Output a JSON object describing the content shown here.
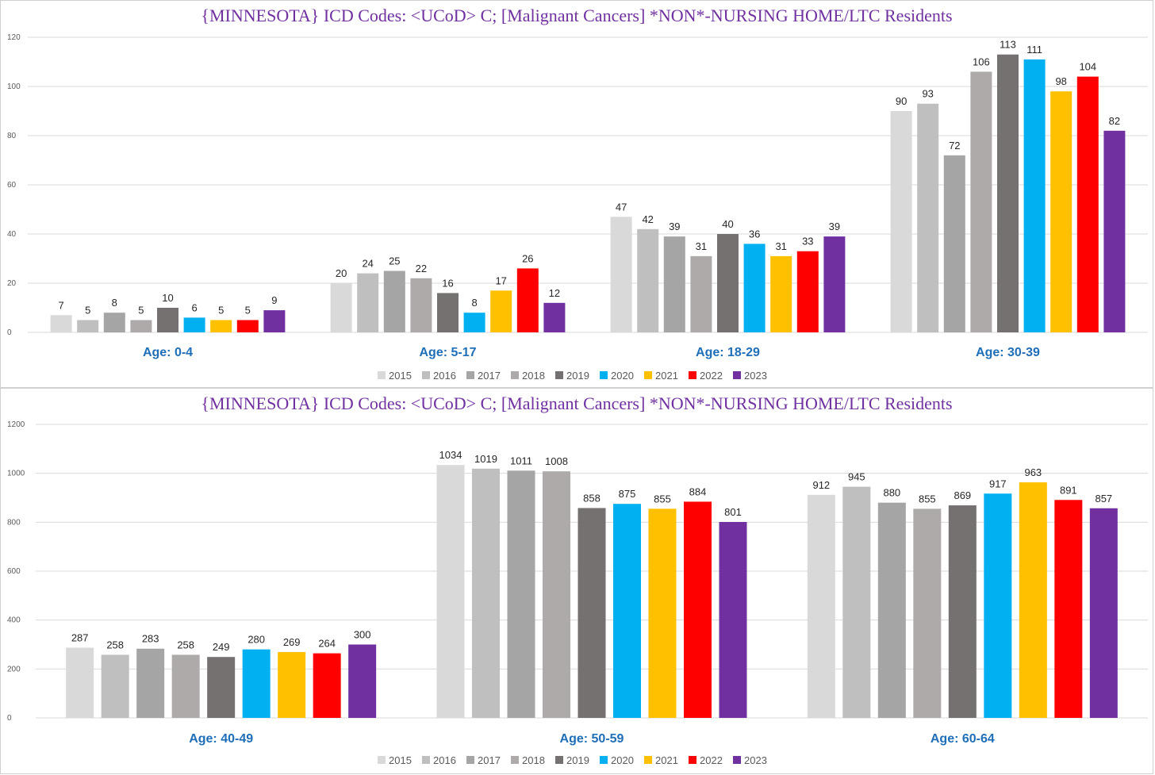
{
  "chart_data": [
    {
      "type": "bar",
      "title": "{MINNESOTA}  ICD Codes: <UCoD> C;  [Malignant Cancers] *NON*-NURSING HOME/LTC Residents",
      "categories": [
        "Age: 0-4",
        "Age: 5-17",
        "Age: 18-29",
        "Age: 30-39"
      ],
      "ylim": [
        0,
        120
      ],
      "yticks": [
        0,
        20,
        40,
        60,
        80,
        100,
        120
      ],
      "series": [
        {
          "name": "2015",
          "color": "#d9d9d9",
          "values": [
            7,
            20,
            47,
            90
          ]
        },
        {
          "name": "2016",
          "color": "#bfbfbf",
          "values": [
            5,
            24,
            42,
            93
          ]
        },
        {
          "name": "2017",
          "color": "#a5a5a5",
          "values": [
            8,
            25,
            39,
            72
          ]
        },
        {
          "name": "2018",
          "color": "#aeaaaa",
          "values": [
            5,
            22,
            31,
            106
          ]
        },
        {
          "name": "2019",
          "color": "#767171",
          "values": [
            10,
            16,
            40,
            113
          ]
        },
        {
          "name": "2020",
          "color": "#00b0f0",
          "values": [
            6,
            8,
            36,
            111
          ]
        },
        {
          "name": "2021",
          "color": "#ffc000",
          "values": [
            5,
            17,
            31,
            98
          ]
        },
        {
          "name": "2022",
          "color": "#ff0000",
          "values": [
            5,
            26,
            33,
            104
          ]
        },
        {
          "name": "2023",
          "color": "#7030a0",
          "values": [
            9,
            12,
            39,
            82
          ]
        }
      ],
      "legend": "bottom"
    },
    {
      "type": "bar",
      "title": "{MINNESOTA}  ICD Codes: <UCoD> C;  [Malignant Cancers] *NON*-NURSING HOME/LTC Residents",
      "categories": [
        "Age: 40-49",
        "Age: 50-59",
        "Age: 60-64"
      ],
      "ylim": [
        0,
        1200
      ],
      "yticks": [
        0,
        200,
        400,
        600,
        800,
        1000,
        1200
      ],
      "series": [
        {
          "name": "2015",
          "color": "#d9d9d9",
          "values": [
            287,
            1034,
            912
          ]
        },
        {
          "name": "2016",
          "color": "#bfbfbf",
          "values": [
            258,
            1019,
            945
          ]
        },
        {
          "name": "2017",
          "color": "#a5a5a5",
          "values": [
            283,
            1011,
            880
          ]
        },
        {
          "name": "2018",
          "color": "#aeaaaa",
          "values": [
            258,
            1008,
            855
          ]
        },
        {
          "name": "2019",
          "color": "#767171",
          "values": [
            249,
            858,
            869
          ]
        },
        {
          "name": "2020",
          "color": "#00b0f0",
          "values": [
            280,
            875,
            917
          ]
        },
        {
          "name": "2021",
          "color": "#ffc000",
          "values": [
            269,
            855,
            963
          ]
        },
        {
          "name": "2022",
          "color": "#ff0000",
          "values": [
            264,
            884,
            891
          ]
        },
        {
          "name": "2023",
          "color": "#7030a0",
          "values": [
            300,
            801,
            857
          ]
        }
      ],
      "legend": "bottom"
    }
  ]
}
